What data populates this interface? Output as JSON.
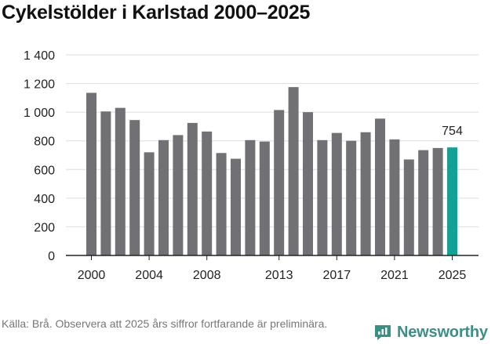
{
  "chart_data": {
    "type": "bar",
    "title": "Cykelstölder i Karlstad 2000–2025",
    "categories": [
      "2000",
      "2001",
      "2002",
      "2003",
      "2004",
      "2005",
      "2006",
      "2007",
      "2008",
      "2009",
      "2010",
      "2011",
      "2012",
      "2013",
      "2014",
      "2015",
      "2016",
      "2017",
      "2018",
      "2019",
      "2020",
      "2021",
      "2022",
      "2023",
      "2024",
      "2025"
    ],
    "values": [
      1135,
      1005,
      1030,
      945,
      720,
      805,
      840,
      925,
      865,
      715,
      675,
      805,
      795,
      1015,
      1175,
      1000,
      805,
      855,
      800,
      860,
      955,
      810,
      670,
      735,
      750,
      754
    ],
    "x_tick_labels": [
      "2000",
      "2004",
      "2008",
      "2013",
      "2017",
      "2021",
      "2025"
    ],
    "y_tick_labels": [
      "0",
      "200",
      "400",
      "600",
      "800",
      "1 000",
      "1 200",
      "1 400"
    ],
    "ylim": [
      0,
      1400
    ],
    "highlight_index": 25,
    "highlight_label": "754",
    "colors": {
      "bar": "#717075",
      "highlight": "#14a093",
      "grid": "#dddddd",
      "axis": "#222222"
    },
    "xlabel": "",
    "ylabel": ""
  },
  "footer": {
    "source": "Källa: Brå. Observera att 2025 års siffror fortfarande är preliminära.",
    "brand": "Newsworthy",
    "brand_color": "#3a8f86"
  }
}
